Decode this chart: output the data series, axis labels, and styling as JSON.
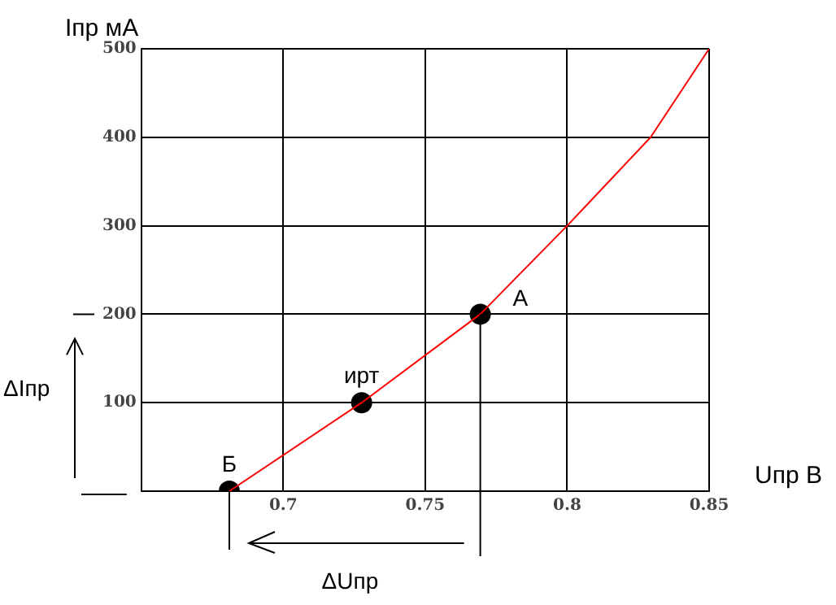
{
  "chart_data": {
    "type": "line",
    "xlabel": "Uпр В",
    "ylabel": "Iпр мА",
    "xlim": [
      0.65,
      0.85
    ],
    "xticks": [
      0.7,
      0.75,
      0.8,
      0.85
    ],
    "ylim": [
      0,
      500
    ],
    "yticks": [
      {
        "value": 0,
        "label": null
      },
      100,
      200,
      300,
      400,
      500
    ],
    "grid": true,
    "legend": false,
    "series": [
      {
        "type": "line",
        "color": "#ff0000",
        "marker": "none",
        "x": [
          0.681,
          0.7276,
          0.7694,
          0.8,
          0.8294,
          0.85
        ],
        "values": [
          0,
          100,
          200,
          300,
          400,
          500
        ]
      },
      {
        "type": "scatter",
        "color": "#000000",
        "marker": "circle",
        "x": [
          0.681,
          0.7276,
          0.7694
        ],
        "values": [
          0,
          100,
          200
        ]
      }
    ],
    "annotations": [
      {
        "text": "Б",
        "x": 0.681,
        "y": 0
      },
      {
        "text": "ирт",
        "x": 0.7276,
        "y": 100
      },
      {
        "text": "A",
        "x": 0.7694,
        "y": 200
      },
      "ΔIпр",
      "ΔUпр"
    ]
  }
}
